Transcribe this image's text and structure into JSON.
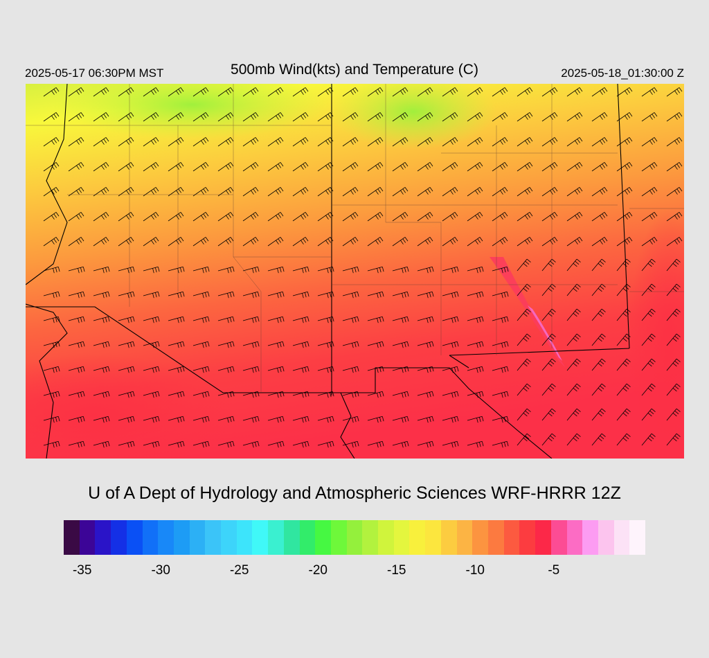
{
  "header": {
    "local_time": "2025-05-17 06:30PM MST",
    "title": "500mb Wind(kts) and Temperature (C)",
    "utc_time": "2025-05-18_01:30:00 Z"
  },
  "footer": {
    "credit": "U of A Dept of Hydrology and Atmospheric Sciences WRF-HRRR 12Z"
  },
  "colorbar": {
    "colors": [
      "#3a0a45",
      "#3c0597",
      "#2a14c8",
      "#1430e6",
      "#0a50f5",
      "#1170f8",
      "#1888f8",
      "#1d9cf5",
      "#2cb0f5",
      "#3bc4f8",
      "#3dd4fa",
      "#3de4fb",
      "#40f8f8",
      "#3af0d0",
      "#30e6a0",
      "#32ec6a",
      "#46f842",
      "#6ef83a",
      "#94f03c",
      "#b2f23e",
      "#d0f43c",
      "#e4f63e",
      "#f8f03c",
      "#fce63e",
      "#fccc40",
      "#fcb444",
      "#fc9440",
      "#fc7a40",
      "#fc5a40",
      "#fc3c40",
      "#fc2848",
      "#fc4c94",
      "#fc6cc4",
      "#fc9cf2",
      "#fcc4ee",
      "#fce2f6",
      "#fef4fc"
    ],
    "ticks": [
      {
        "label": "-35",
        "value": -35
      },
      {
        "label": "-30",
        "value": -30
      },
      {
        "label": "-25",
        "value": -25
      },
      {
        "label": "-20",
        "value": -20
      },
      {
        "label": "-15",
        "value": -15
      },
      {
        "label": "-10",
        "value": -10
      },
      {
        "label": "-5",
        "value": -5
      }
    ]
  },
  "map": {
    "field": "500mb temperature (C) with wind barbs (kts)",
    "colors": {
      "cold_green": "#b4f040",
      "yellow": "#fcf43c",
      "orange": "#fca43c",
      "red": "#fc3c44",
      "magenta": "#f84c9c"
    }
  }
}
